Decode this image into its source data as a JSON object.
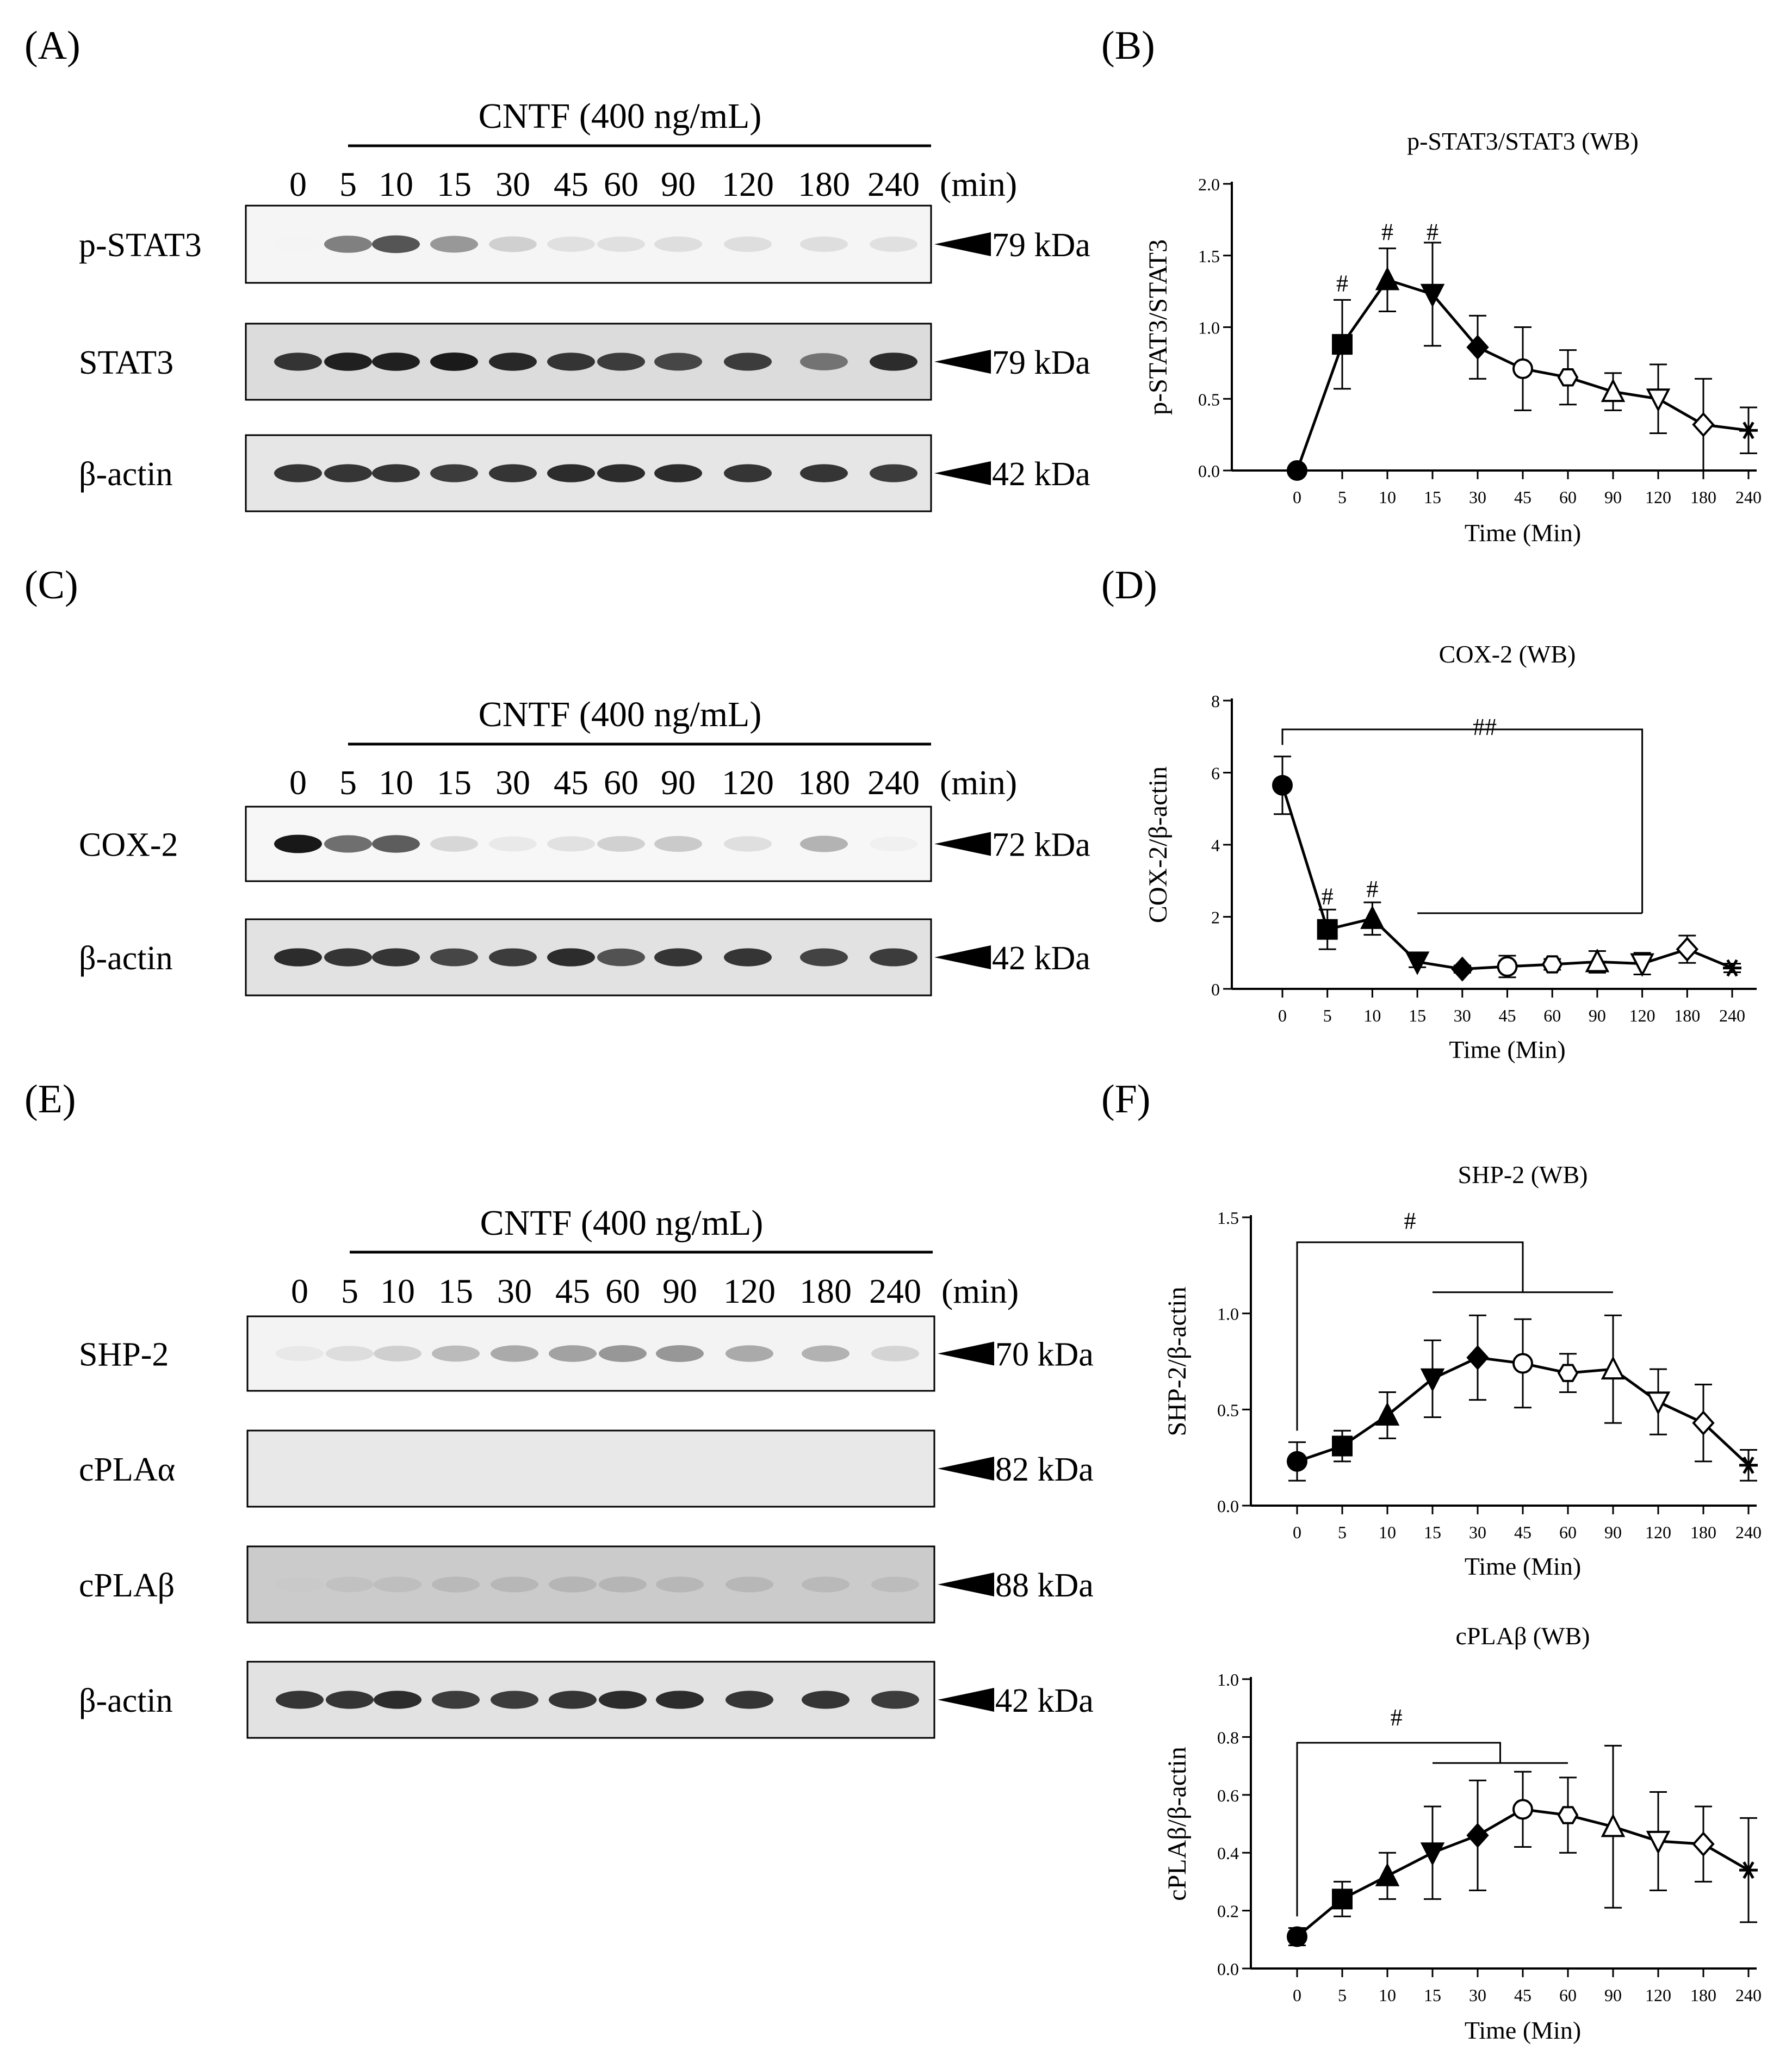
{
  "panels": {
    "A": {
      "label": "(A)",
      "header": "CNTF (400 ng/mL)",
      "lanes": [
        "0",
        "5",
        "10",
        "15",
        "30",
        "45",
        "60",
        "90",
        "120",
        "180",
        "240"
      ],
      "unit": "(min)",
      "blots": [
        {
          "name": "p-STAT3",
          "kda": "79 kDa",
          "bg": "#f5f5f5",
          "intensity": [
            0.03,
            0.7,
            0.82,
            0.62,
            0.38,
            0.28,
            0.28,
            0.3,
            0.3,
            0.3,
            0.28
          ]
        },
        {
          "name": "STAT3",
          "kda": "79 kDa",
          "bg": "#dcdcdc",
          "intensity": [
            0.9,
            0.95,
            0.95,
            0.97,
            0.93,
            0.9,
            0.88,
            0.85,
            0.88,
            0.72,
            0.92
          ]
        },
        {
          "name": "β-actin",
          "kda": "42 kDa",
          "bg": "#e6e6e6",
          "intensity": [
            0.9,
            0.9,
            0.9,
            0.88,
            0.9,
            0.92,
            0.92,
            0.92,
            0.9,
            0.9,
            0.88
          ]
        }
      ]
    },
    "C": {
      "label": "(C)",
      "header": "CNTF (400 ng/mL)",
      "lanes": [
        "0",
        "5",
        "10",
        "15",
        "30",
        "45",
        "60",
        "90",
        "120",
        "180",
        "240"
      ],
      "unit": "(min)",
      "blots": [
        {
          "name": "COX-2",
          "kda": "72 kDa",
          "bg": "#f7f7f7",
          "intensity": [
            0.98,
            0.75,
            0.8,
            0.35,
            0.22,
            0.28,
            0.38,
            0.42,
            0.3,
            0.52,
            0.15
          ]
        },
        {
          "name": "β-actin",
          "kda": "42 kDa",
          "bg": "#e2e2e2",
          "intensity": [
            0.92,
            0.9,
            0.9,
            0.85,
            0.88,
            0.92,
            0.82,
            0.9,
            0.9,
            0.86,
            0.88
          ]
        }
      ]
    },
    "E": {
      "label": "(E)",
      "header": "CNTF (400 ng/mL)",
      "lanes": [
        "0",
        "5",
        "10",
        "15",
        "30",
        "45",
        "60",
        "90",
        "120",
        "180",
        "240"
      ],
      "unit": "(min)",
      "blots": [
        {
          "name": "SHP-2",
          "kda": "70 kDa",
          "bg": "#f3f3f3",
          "intensity": [
            0.2,
            0.3,
            0.38,
            0.48,
            0.55,
            0.58,
            0.62,
            0.62,
            0.55,
            0.52,
            0.35
          ]
        },
        {
          "name": "cPLAα",
          "kda": "82 kDa",
          "bg": "#e8e8e8",
          "intensity": [
            0.03,
            0.03,
            0.03,
            0.03,
            0.03,
            0.03,
            0.03,
            0.03,
            0.03,
            0.03,
            0.03
          ]
        },
        {
          "name": "cPLAβ",
          "kda": "88 kDa",
          "bg": "#cbcbcb",
          "intensity": [
            0.2,
            0.3,
            0.33,
            0.36,
            0.38,
            0.4,
            0.4,
            0.38,
            0.38,
            0.36,
            0.34
          ]
        },
        {
          "name": "β-actin",
          "kda": "42 kDa",
          "bg": "#e2e2e2",
          "intensity": [
            0.9,
            0.9,
            0.92,
            0.88,
            0.88,
            0.9,
            0.92,
            0.92,
            0.9,
            0.9,
            0.88
          ]
        }
      ]
    },
    "B": {
      "label": "(B)"
    },
    "D": {
      "label": "(D)"
    },
    "F": {
      "label": "(F)"
    }
  },
  "chart_data": [
    {
      "id": "B",
      "type": "line",
      "title": "p-STAT3/STAT3 (WB)",
      "xlabel": "Time (Min)",
      "ylabel": "p-STAT3/STAT3",
      "categories": [
        "0",
        "5",
        "10",
        "15",
        "30",
        "45",
        "60",
        "90",
        "120",
        "180",
        "240"
      ],
      "values": [
        0,
        0.88,
        1.33,
        1.23,
        0.86,
        0.71,
        0.65,
        0.55,
        0.5,
        0.32,
        0.28
      ],
      "errors": [
        0,
        0.31,
        0.22,
        0.36,
        0.22,
        0.29,
        0.19,
        0.13,
        0.24,
        0.32,
        0.16
      ],
      "markers": [
        "circle",
        "square",
        "triangle",
        "tri-down",
        "diamond",
        "circle-open",
        "hexagon-open",
        "triangle-open",
        "tri-down-open",
        "diamond-open",
        "star"
      ],
      "ylim": [
        0,
        2.0
      ],
      "yticks": [
        "0.0",
        "0.5",
        "1.0",
        "1.5",
        "2.0"
      ],
      "annotations": [
        {
          "x_index": 1,
          "y": 1.25,
          "text": "#"
        },
        {
          "x_index": 2,
          "y": 1.61,
          "text": "#"
        },
        {
          "x_index": 3,
          "y": 1.61,
          "text": "#"
        }
      ]
    },
    {
      "id": "D",
      "type": "line",
      "title": "COX-2 (WB)",
      "xlabel": "Time (Min)",
      "ylabel": "COX-2/β-actin",
      "categories": [
        "0",
        "5",
        "10",
        "15",
        "30",
        "45",
        "60",
        "90",
        "120",
        "180",
        "240"
      ],
      "values": [
        5.65,
        1.65,
        1.95,
        0.75,
        0.55,
        0.62,
        0.68,
        0.75,
        0.7,
        1.1,
        0.58
      ],
      "errors": [
        0.8,
        0.55,
        0.45,
        0.15,
        0.1,
        0.3,
        0.15,
        0.3,
        0.3,
        0.38,
        0.12
      ],
      "markers": [
        "circle",
        "square",
        "triangle",
        "tri-down",
        "diamond",
        "circle-open",
        "hexagon-open",
        "triangle-open",
        "tri-down-open",
        "diamond-open",
        "star"
      ],
      "ylim": [
        0,
        8
      ],
      "yticks": [
        "0",
        "2",
        "4",
        "6",
        "8"
      ],
      "annotations": [
        {
          "x_index": 1,
          "y": 2.35,
          "text": "#"
        },
        {
          "x_index": 2,
          "y": 2.55,
          "text": "#"
        },
        {
          "x_index": 4.5,
          "y": 7.05,
          "text": "##"
        }
      ],
      "brackets": [
        {
          "from_index": 0,
          "to_index": 8,
          "span_from": 3,
          "span_to": 8,
          "y_top": 7.2,
          "y_span": 2.1
        }
      ]
    },
    {
      "id": "F1",
      "type": "line",
      "title": "SHP-2 (WB)",
      "xlabel": "Time (Min)",
      "ylabel": "SHP-2/β-actin",
      "categories": [
        "0",
        "5",
        "10",
        "15",
        "30",
        "45",
        "60",
        "90",
        "120",
        "180",
        "240"
      ],
      "values": [
        0.23,
        0.31,
        0.47,
        0.66,
        0.77,
        0.74,
        0.69,
        0.71,
        0.54,
        0.43,
        0.21
      ],
      "errors": [
        0.1,
        0.08,
        0.12,
        0.2,
        0.22,
        0.23,
        0.1,
        0.28,
        0.17,
        0.2,
        0.08
      ],
      "markers": [
        "circle",
        "square",
        "triangle",
        "tri-down",
        "diamond",
        "circle-open",
        "hexagon-open",
        "triangle-open",
        "tri-down-open",
        "diamond-open",
        "star"
      ],
      "ylim": [
        0,
        1.5
      ],
      "yticks": [
        "0.0",
        "0.5",
        "1.0",
        "1.5"
      ],
      "annotations": [
        {
          "x_index": 2.5,
          "y": 1.44,
          "text": "#"
        }
      ],
      "brackets": [
        {
          "from_index": 0,
          "to_index": 5,
          "span_from": 3,
          "span_to": 7,
          "y_top": 1.37,
          "y_span": 1.11
        }
      ]
    },
    {
      "id": "F2",
      "type": "line",
      "title": "cPLAβ (WB)",
      "xlabel": "Time (Min)",
      "ylabel": "cPLAβ/β-actin",
      "categories": [
        "0",
        "5",
        "10",
        "15",
        "30",
        "45",
        "60",
        "90",
        "120",
        "180",
        "240"
      ],
      "values": [
        0.11,
        0.24,
        0.32,
        0.4,
        0.46,
        0.55,
        0.53,
        0.49,
        0.44,
        0.43,
        0.34
      ],
      "errors": [
        0.03,
        0.06,
        0.08,
        0.16,
        0.19,
        0.13,
        0.13,
        0.28,
        0.17,
        0.13,
        0.18
      ],
      "markers": [
        "circle",
        "square",
        "triangle",
        "tri-down",
        "diamond",
        "circle-open",
        "hexagon-open",
        "triangle-open",
        "tri-down-open",
        "diamond-open",
        "star"
      ],
      "ylim": [
        0,
        1.0
      ],
      "yticks": [
        "0.0",
        "0.2",
        "0.4",
        "0.6",
        "0.8",
        "1.0"
      ],
      "annotations": [
        {
          "x_index": 2.2,
          "y": 0.84,
          "text": "#"
        }
      ],
      "brackets": [
        {
          "from_index": 0,
          "to_index": 4.5,
          "span_from": 3,
          "span_to": 6,
          "y_top": 0.78,
          "y_span": 0.71
        }
      ]
    }
  ]
}
